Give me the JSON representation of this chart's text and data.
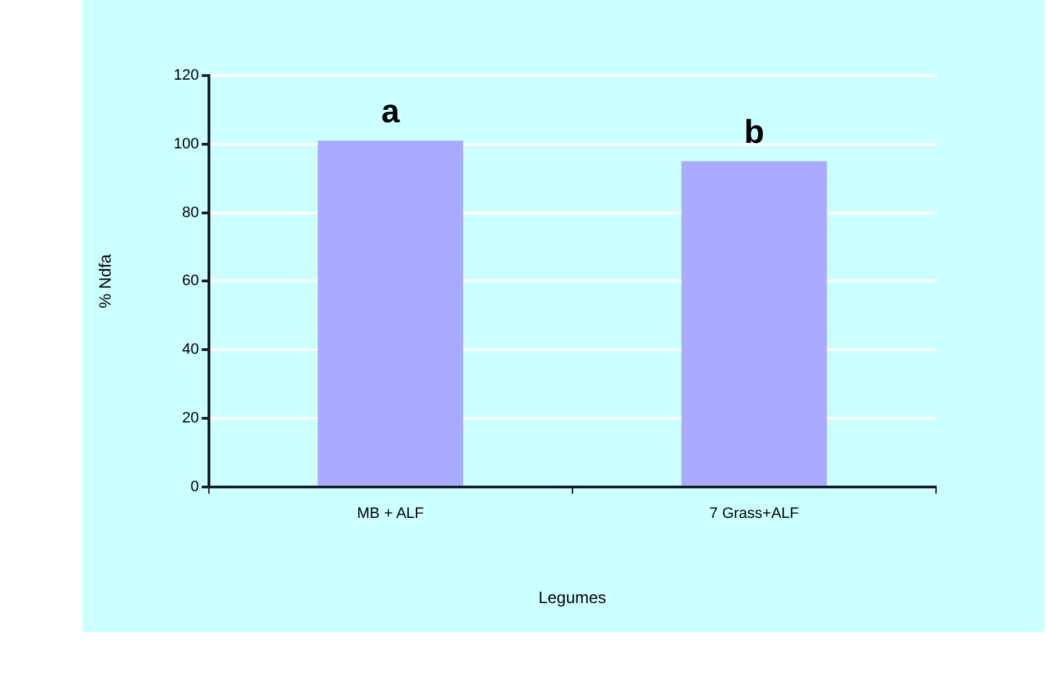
{
  "chart_data": {
    "type": "bar",
    "xlabel": "Legumes",
    "ylabel": "% Ndfa",
    "categories": [
      "MB + ALF",
      "7 Grass+ALF"
    ],
    "values": [
      101,
      95
    ],
    "color": "#aaaaff",
    "ylim": [
      0,
      120
    ],
    "yticks": [
      0,
      20,
      40,
      60,
      80,
      100,
      120
    ],
    "grid": "y",
    "annotations": [
      "a",
      "b"
    ]
  }
}
